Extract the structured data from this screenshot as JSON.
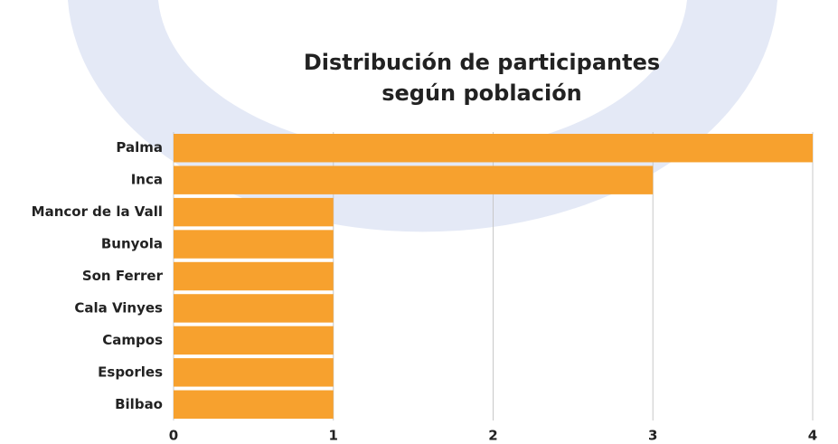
{
  "chart_data": {
    "type": "bar",
    "orientation": "horizontal",
    "title": [
      "Distribución de participantes",
      "según población"
    ],
    "categories": [
      "Palma",
      "Inca",
      "Mancor de la Vall",
      "Bunyola",
      "Son Ferrer",
      "Cala Vinyes",
      "Campos",
      "Esporles",
      "Bilbao"
    ],
    "values": [
      4,
      3,
      1,
      1,
      1,
      1,
      1,
      1,
      1
    ],
    "color": "#f7a12e",
    "xlim": [
      0,
      4
    ],
    "xticks": [
      0,
      1,
      2,
      3,
      4
    ],
    "grid": true
  }
}
